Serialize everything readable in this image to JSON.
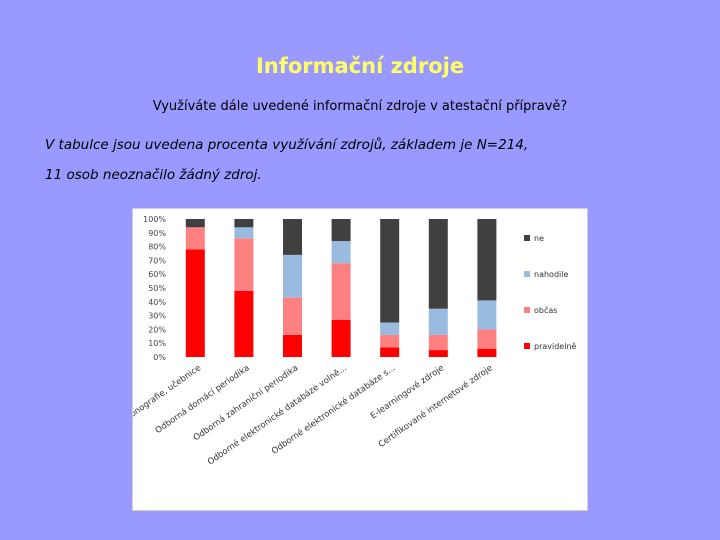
{
  "slide": {
    "title": "Informační zdroje",
    "subtitle": "Využíváte dále uvedené informační zdroje v atestační přípravě?",
    "note_line1": "V tabulce jsou uvedena procenta využívání zdrojů, základem je N=214,",
    "note_line2": "11 osob neoznačilo žádný zdroj."
  },
  "chart_data": {
    "type": "bar",
    "stacked": true,
    "categories": [
      "Monografie, učebnice",
      "Odborná domácí periodika",
      "Odborná zahraniční periodika",
      "Odborné elektronické databáze volně...",
      "Odborné elektronické databáze s...",
      "E-learningové zdroje",
      "Certifikované internetové zdroje"
    ],
    "series": [
      {
        "name": "pravidelně",
        "color": "#ff0000",
        "values": [
          78,
          48,
          16,
          27,
          7,
          5,
          6
        ]
      },
      {
        "name": "občas",
        "color": "#ff8080",
        "values": [
          16,
          38,
          27,
          41,
          9,
          11,
          14
        ]
      },
      {
        "name": "nahodile",
        "color": "#99bbe0",
        "values": [
          0,
          8,
          31,
          16,
          9,
          19,
          21
        ]
      },
      {
        "name": "ne",
        "color": "#404040",
        "values": [
          6,
          6,
          26,
          16,
          75,
          65,
          59
        ]
      }
    ],
    "yticks": [
      "0%",
      "10%",
      "20%",
      "30%",
      "40%",
      "50%",
      "60%",
      "70%",
      "80%",
      "90%",
      "100%"
    ],
    "ylim": [
      0,
      100
    ],
    "legend_position": "right",
    "grid": false
  }
}
